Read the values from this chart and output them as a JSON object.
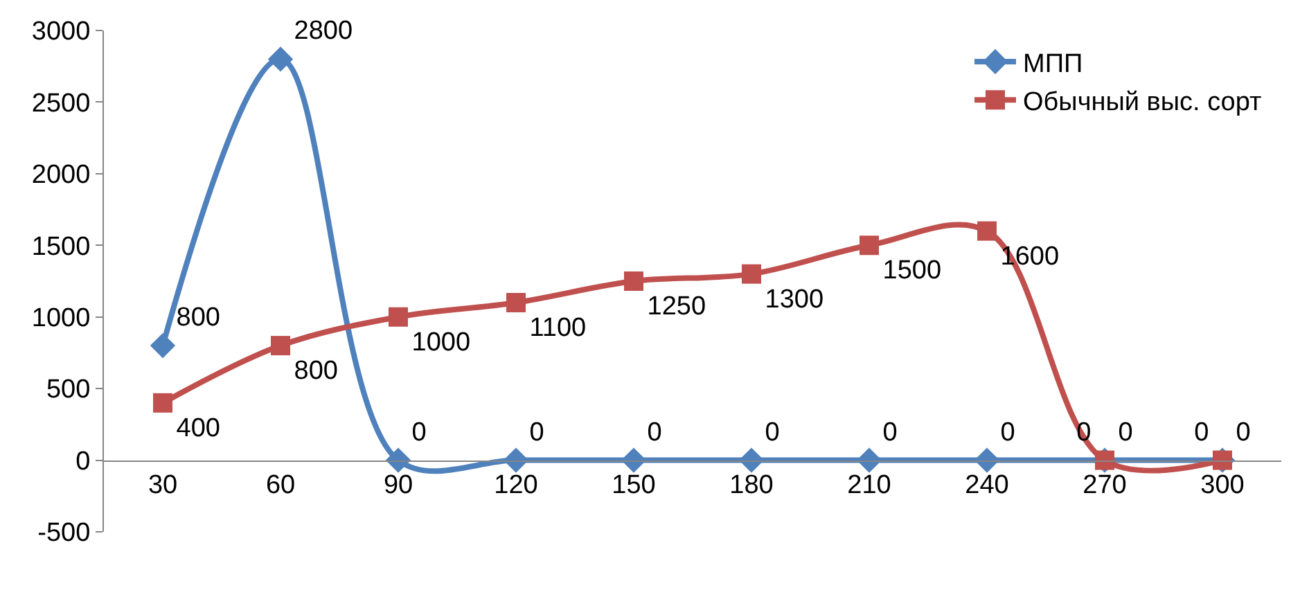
{
  "chart_data": {
    "type": "line",
    "categories": [
      "30",
      "60",
      "90",
      "120",
      "150",
      "180",
      "210",
      "240",
      "270",
      "300"
    ],
    "series": [
      {
        "name": "МПП",
        "color": "#4f81bd",
        "marker": "diamond",
        "values": [
          800,
          2800,
          0,
          0,
          0,
          0,
          0,
          0,
          0,
          0
        ]
      },
      {
        "name": "Обычный выс. сорт",
        "color": "#c0504d",
        "marker": "square",
        "values": [
          400,
          800,
          1000,
          1100,
          1250,
          1300,
          1500,
          1600,
          0,
          0
        ]
      }
    ],
    "ylim": [
      -500,
      3000
    ],
    "yticks": [
      -500,
      0,
      500,
      1000,
      1500,
      2000,
      2500,
      3000
    ],
    "legend": "top right",
    "data_labels": true
  }
}
